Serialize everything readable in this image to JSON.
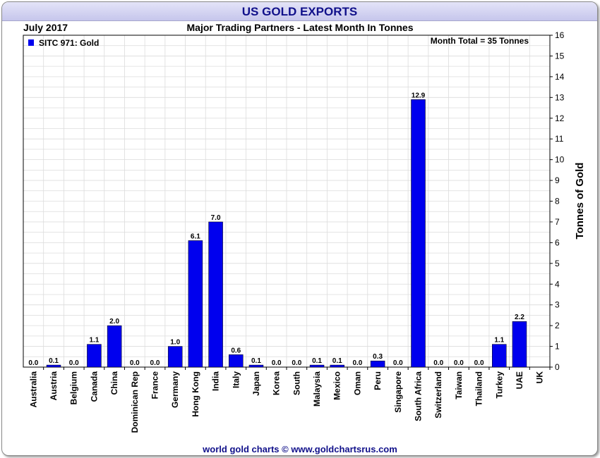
{
  "header": {
    "title": "US GOLD EXPORTS"
  },
  "chart_data": {
    "type": "bar",
    "date_label": "July 2017",
    "title": "Major Trading Partners - Latest Month In Tonnes",
    "legend": "SITC 971: Gold",
    "annotation": "Month Total = 35 Tonnes",
    "ylabel": "Tonnes of Gold",
    "xlabel": "",
    "ylim": [
      0,
      16
    ],
    "yticks": [
      0,
      1,
      2,
      3,
      4,
      5,
      6,
      7,
      8,
      9,
      10,
      11,
      12,
      13,
      14,
      15,
      16
    ],
    "grid": true,
    "legend_position": "top-left",
    "categories": [
      "Australia",
      "Austria",
      "Belgium",
      "Canada",
      "China",
      "Dominican Rep",
      "France",
      "Germany",
      "Hong Kong",
      "India",
      "Italy",
      "Japan",
      "Korea",
      "South",
      "Malaysia",
      "Mexico",
      "Oman",
      "Peru",
      "Singapore",
      "South Africa",
      "Switzerland",
      "Taiwan",
      "Thailand",
      "Turkey",
      "UAE",
      "UK"
    ],
    "values": [
      0.0,
      0.1,
      0.0,
      1.1,
      2.0,
      0.0,
      0.0,
      1.0,
      6.1,
      7.0,
      0.6,
      0.1,
      0.0,
      0.0,
      0.1,
      0.1,
      0.0,
      0.3,
      0.0,
      12.9,
      0.0,
      0.0,
      0.0,
      1.1,
      2.2,
      null
    ],
    "value_labels": [
      "0.0",
      "0.1",
      "0.0",
      "1.1",
      "2.0",
      "0.0",
      "0.0",
      "1.0",
      "6.1",
      "7.0",
      "0.6",
      "0.1",
      "0.0",
      "0.0",
      "0.1",
      "0.1",
      "0.0",
      "0.3",
      "0.0",
      "12.9",
      "0.0",
      "0.0",
      "0.0",
      "1.1",
      "2.2",
      ""
    ],
    "bar_color": "#0000ee"
  },
  "footer": {
    "credit": "world gold charts © www.goldchartsrus.com"
  }
}
